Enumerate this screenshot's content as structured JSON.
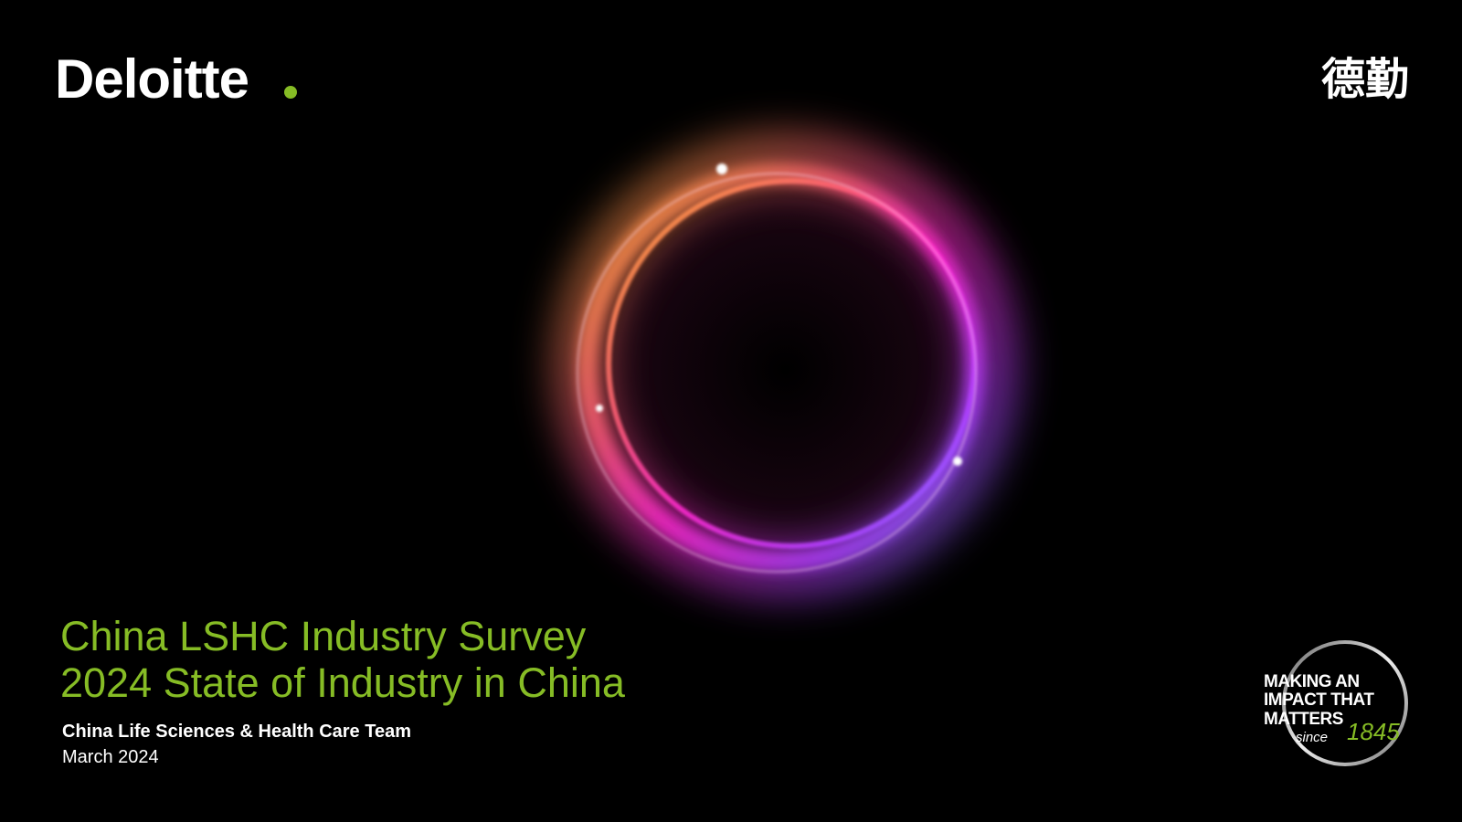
{
  "logo": {
    "name": "Deloitte",
    "chinese": "德勤"
  },
  "title": {
    "line1": "China LSHC Industry Survey",
    "line2": "2024 State of Industry in China"
  },
  "team": "China Life Sciences & Health Care Team",
  "date": "March 2024",
  "badge": {
    "lines": [
      "MAKING AN",
      "IMPACT THAT",
      "MATTERS"
    ],
    "since": "since",
    "year": "1845"
  }
}
